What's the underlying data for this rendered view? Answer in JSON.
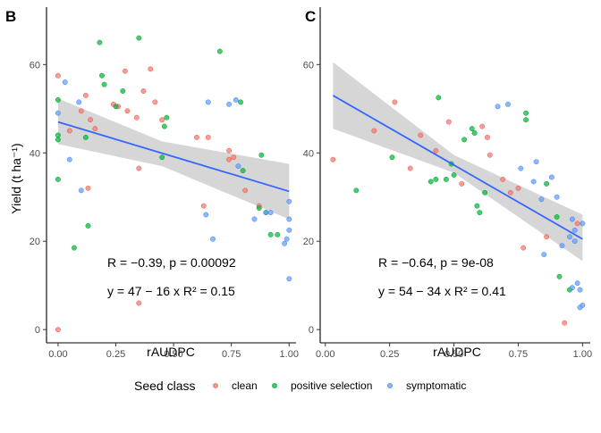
{
  "legend": {
    "title": "Seed class",
    "entries": [
      {
        "label": "clean",
        "color": "#F8766D"
      },
      {
        "label": "positive selection",
        "color": "#00BA38"
      },
      {
        "label": "symptomatic",
        "color": "#619CFF"
      }
    ]
  },
  "y_axis_title": "Yield (t ha⁻¹)",
  "chart_data": [
    {
      "panel": "B",
      "type": "scatter",
      "xlabel": "rAUDPC",
      "ylabel": "Yield (t ha⁻¹)",
      "xlim": [
        -0.05,
        1.03
      ],
      "ylim": [
        -3,
        73
      ],
      "xticks": [
        "0.00",
        "0.25",
        "0.50",
        "0.75",
        "1.00"
      ],
      "yticks": [
        "0",
        "20",
        "40",
        "60"
      ],
      "fit": {
        "x0": 0.0,
        "y0": 47.0,
        "x1": 1.0,
        "y1": 31.3,
        "band": [
          [
            0.0,
            42.0,
            52.3
          ],
          [
            0.45,
            37.0,
            42.6
          ],
          [
            1.0,
            25.0,
            37.5
          ]
        ]
      },
      "annotation_r": "R = −0.39, p = 0.00092",
      "annotation_eq": "y = 47 − 16 x   R² = 0.15",
      "series": [
        {
          "name": "clean",
          "color": "#F8766D",
          "points": [
            [
              0.0,
              57.5
            ],
            [
              0.05,
              45
            ],
            [
              0.1,
              49.5
            ],
            [
              0.12,
              53
            ],
            [
              0.14,
              47.5
            ],
            [
              0.16,
              45.5
            ],
            [
              0.24,
              51
            ],
            [
              0.26,
              50.5
            ],
            [
              0.29,
              58.5
            ],
            [
              0.3,
              49.5
            ],
            [
              0.34,
              48
            ],
            [
              0.37,
              54
            ],
            [
              0.4,
              59
            ],
            [
              0.42,
              51.5
            ],
            [
              0.45,
              47.5
            ],
            [
              0.6,
              43.5
            ],
            [
              0.65,
              43.5
            ],
            [
              0.74,
              40.5
            ],
            [
              0.74,
              38.5
            ],
            [
              0.76,
              39
            ],
            [
              0.81,
              31.5
            ],
            [
              0.87,
              28
            ],
            [
              0.35,
              36.5
            ],
            [
              0.63,
              28
            ],
            [
              0.13,
              32
            ],
            [
              0.35,
              6
            ],
            [
              0.0,
              0
            ]
          ]
        },
        {
          "name": "positive selection",
          "color": "#00BA38",
          "points": [
            [
              0.18,
              65
            ],
            [
              0.35,
              66
            ],
            [
              0.7,
              63
            ],
            [
              0.2,
              55.5
            ],
            [
              0.25,
              50.5
            ],
            [
              0.19,
              57.5
            ],
            [
              0.28,
              54
            ],
            [
              0.46,
              46
            ],
            [
              0.47,
              48
            ],
            [
              0.0,
              52
            ],
            [
              0.0,
              44
            ],
            [
              0.0,
              43
            ],
            [
              0.0,
              34
            ],
            [
              0.07,
              18.5
            ],
            [
              0.13,
              23.5
            ],
            [
              0.12,
              43.5
            ],
            [
              0.45,
              39
            ],
            [
              0.79,
              51.5
            ],
            [
              0.8,
              36
            ],
            [
              0.87,
              27.5
            ],
            [
              0.88,
              39.5
            ],
            [
              0.92,
              21.5
            ],
            [
              0.95,
              21.5
            ],
            [
              0.9,
              26.5
            ]
          ]
        },
        {
          "name": "symptomatic",
          "color": "#619CFF",
          "points": [
            [
              0.03,
              56
            ],
            [
              0.09,
              51.5
            ],
            [
              0.1,
              31.5
            ],
            [
              0.05,
              38.5
            ],
            [
              0.65,
              51.5
            ],
            [
              0.74,
              51
            ],
            [
              0.77,
              52
            ],
            [
              0.64,
              26
            ],
            [
              0.67,
              20.5
            ],
            [
              0.78,
              37
            ],
            [
              0.85,
              25
            ],
            [
              0.9,
              26.5
            ],
            [
              0.92,
              26.5
            ],
            [
              1.0,
              29
            ],
            [
              1.0,
              25
            ],
            [
              1.0,
              22.5
            ],
            [
              0.99,
              20.5
            ],
            [
              0.98,
              19.5
            ],
            [
              1.0,
              11.5
            ],
            [
              0.0,
              49
            ]
          ]
        }
      ]
    },
    {
      "panel": "C",
      "type": "scatter",
      "xlabel": "rAUDPC",
      "ylabel": "",
      "xlim": [
        -0.02,
        1.03
      ],
      "ylim": [
        -3,
        73
      ],
      "xticks": [
        "0.00",
        "0.25",
        "0.50",
        "0.75",
        "1.00"
      ],
      "yticks": [
        "0",
        "20",
        "40",
        "60"
      ],
      "fit": {
        "x0": 0.03,
        "y0": 53,
        "x1": 1.0,
        "y1": 20.5,
        "band": [
          [
            0.03,
            45.5,
            60.5
          ],
          [
            0.5,
            35.5,
            39.5
          ],
          [
            1.0,
            15.5,
            26.0
          ]
        ]
      },
      "annotation_r": "R = −0.64, p = 9e-08",
      "annotation_eq": "y = 54 − 34 x   R² = 0.41",
      "series": [
        {
          "name": "clean",
          "color": "#F8766D",
          "points": [
            [
              0.03,
              38.5
            ],
            [
              0.19,
              45
            ],
            [
              0.27,
              51.5
            ],
            [
              0.33,
              36.5
            ],
            [
              0.37,
              44
            ],
            [
              0.43,
              40.5
            ],
            [
              0.48,
              47
            ],
            [
              0.53,
              33
            ],
            [
              0.61,
              46
            ],
            [
              0.63,
              43.5
            ],
            [
              0.64,
              39.5
            ],
            [
              0.69,
              34
            ],
            [
              0.72,
              31
            ],
            [
              0.75,
              32
            ],
            [
              0.77,
              18.5
            ],
            [
              0.86,
              21
            ],
            [
              0.93,
              1.5
            ],
            [
              0.98,
              24
            ]
          ]
        },
        {
          "name": "positive selection",
          "color": "#00BA38",
          "points": [
            [
              0.12,
              31.5
            ],
            [
              0.26,
              39
            ],
            [
              0.41,
              33.5
            ],
            [
              0.43,
              34
            ],
            [
              0.44,
              52.5
            ],
            [
              0.47,
              34
            ],
            [
              0.49,
              37.5
            ],
            [
              0.5,
              35
            ],
            [
              0.54,
              43
            ],
            [
              0.57,
              45.5
            ],
            [
              0.58,
              44.5
            ],
            [
              0.59,
              28
            ],
            [
              0.6,
              26.5
            ],
            [
              0.62,
              31
            ],
            [
              0.78,
              49
            ],
            [
              0.78,
              47.5
            ],
            [
              0.86,
              33
            ],
            [
              0.9,
              25.5
            ],
            [
              0.91,
              12
            ],
            [
              0.95,
              9
            ]
          ]
        },
        {
          "name": "symptomatic",
          "color": "#619CFF",
          "points": [
            [
              0.67,
              50.5
            ],
            [
              0.71,
              51
            ],
            [
              0.76,
              36.5
            ],
            [
              0.81,
              33.5
            ],
            [
              0.82,
              38
            ],
            [
              0.84,
              29.5
            ],
            [
              0.85,
              17
            ],
            [
              0.88,
              34.5
            ],
            [
              0.9,
              30
            ],
            [
              0.92,
              19
            ],
            [
              0.95,
              21
            ],
            [
              0.96,
              25
            ],
            [
              0.97,
              20
            ],
            [
              0.97,
              22.5
            ],
            [
              0.98,
              10.5
            ],
            [
              0.99,
              9
            ],
            [
              0.99,
              5
            ],
            [
              1.0,
              24
            ],
            [
              0.96,
              9.5
            ],
            [
              1.0,
              5.5
            ]
          ]
        }
      ]
    }
  ]
}
